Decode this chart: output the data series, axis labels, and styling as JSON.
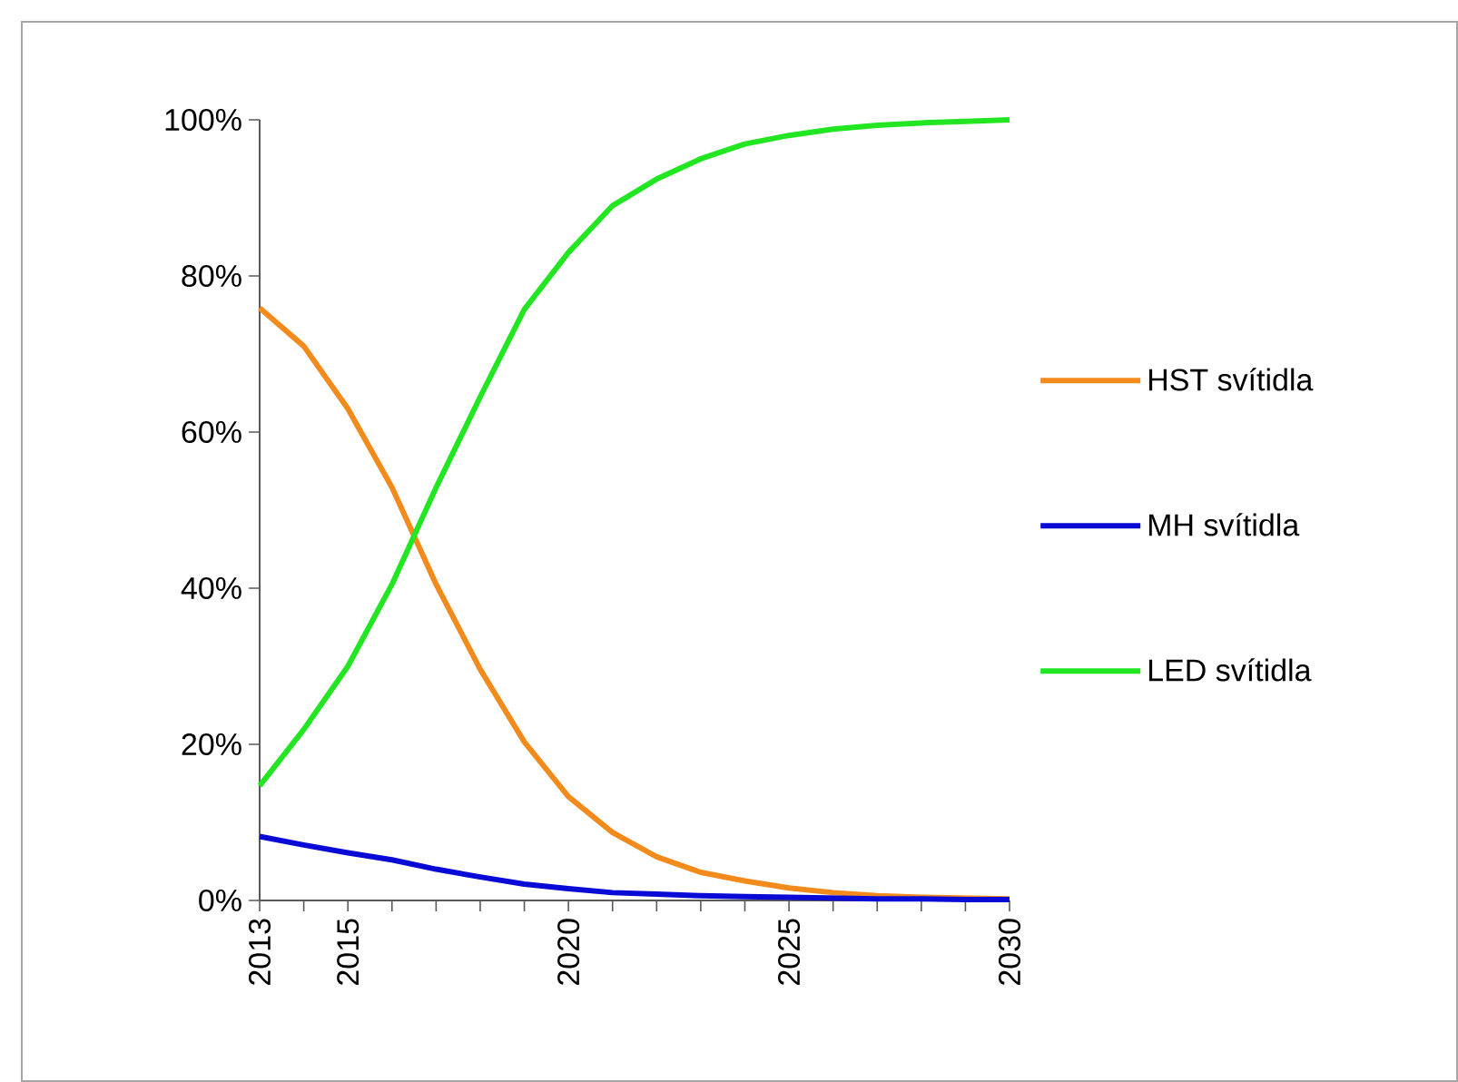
{
  "chart_data": {
    "type": "line",
    "x": [
      2013,
      2014,
      2015,
      2016,
      2017,
      2018,
      2019,
      2020,
      2021,
      2022,
      2023,
      2024,
      2025,
      2026,
      2027,
      2028,
      2029,
      2030
    ],
    "series": [
      {
        "name": "HST svítidla",
        "color": "#f28a1c",
        "values": [
          75.9,
          71,
          63,
          52.9,
          40.5,
          29.6,
          20.3,
          13.3,
          8.7,
          5.6,
          3.6,
          2.5,
          1.6,
          1.0,
          0.6,
          0.4,
          0.3,
          0.2
        ]
      },
      {
        "name": "MH svítidla",
        "color": "#0a0ad6",
        "values": [
          8.2,
          7.1,
          6.1,
          5.2,
          4.0,
          3.0,
          2.1,
          1.5,
          1.0,
          0.8,
          0.6,
          0.5,
          0.4,
          0.3,
          0.2,
          0.2,
          0.1,
          0.1
        ]
      },
      {
        "name": "LED svítidla",
        "color": "#22e622",
        "values": [
          14.7,
          21.9,
          30,
          40.5,
          52.9,
          64.5,
          75.7,
          83,
          89,
          92.4,
          95,
          96.9,
          98,
          98.8,
          99.3,
          99.6,
          99.8,
          100
        ]
      }
    ],
    "xlim": [
      2013,
      2030
    ],
    "xticks": [
      2013,
      {
        "value": 2014,
        "label": null
      },
      2015,
      {
        "value": 2016,
        "label": null
      },
      {
        "value": 2017,
        "label": null
      },
      {
        "value": 2018,
        "label": null
      },
      {
        "value": 2019,
        "label": null
      },
      2020,
      {
        "value": 2021,
        "label": null
      },
      {
        "value": 2022,
        "label": null
      },
      {
        "value": 2023,
        "label": null
      },
      {
        "value": 2024,
        "label": null
      },
      2025,
      {
        "value": 2026,
        "label": null
      },
      {
        "value": 2027,
        "label": null
      },
      {
        "value": 2028,
        "label": null
      },
      {
        "value": 2029,
        "label": null
      },
      2030
    ],
    "ylim": [
      0,
      100
    ],
    "yticks": [
      {
        "value": 0,
        "label": "0%"
      },
      {
        "value": 20,
        "label": "20%"
      },
      {
        "value": 40,
        "label": "40%"
      },
      {
        "value": 60,
        "label": "60%"
      },
      {
        "value": 80,
        "label": "80%"
      },
      {
        "value": 100,
        "label": "100%"
      }
    ],
    "legend": "right",
    "grid": false,
    "marker": "none",
    "line_style": "solid"
  }
}
